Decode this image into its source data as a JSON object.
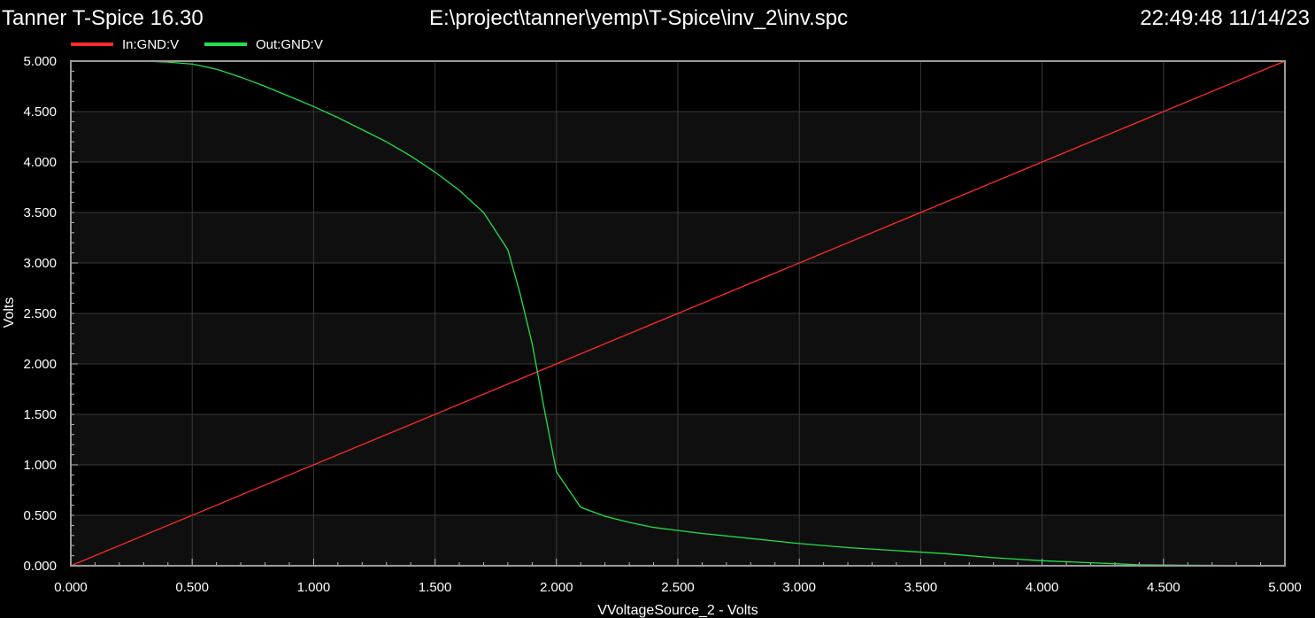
{
  "header": {
    "app_title": "Tanner T-Spice 16.30",
    "file_path": "E:\\project\\tanner\\yemp\\T-Spice\\inv_2\\inv.spc",
    "timestamp": "22:49:48 11/14/23"
  },
  "chart_data": {
    "type": "line",
    "title": "",
    "xlabel": "VVoltageSource_2 - Volts",
    "ylabel": "Volts",
    "xlim": [
      0,
      5
    ],
    "ylim": [
      0,
      5
    ],
    "x_ticks": [
      "0.000",
      "0.500",
      "1.000",
      "1.500",
      "2.000",
      "2.500",
      "3.000",
      "3.500",
      "4.000",
      "4.500",
      "5.000"
    ],
    "y_ticks": [
      "0.000",
      "0.500",
      "1.000",
      "1.500",
      "2.000",
      "2.500",
      "3.000",
      "3.500",
      "4.000",
      "4.500",
      "5.000"
    ],
    "grid": true,
    "legend_position": "top-left",
    "series": [
      {
        "name": "In:GND:V",
        "color": "#ff2a2a",
        "x": [
          0,
          5
        ],
        "y": [
          0,
          5
        ]
      },
      {
        "name": "Out:GND:V",
        "color": "#22e04c",
        "x": [
          0,
          0.3,
          0.4,
          0.5,
          0.6,
          0.7,
          0.8,
          0.9,
          1.0,
          1.1,
          1.2,
          1.3,
          1.4,
          1.5,
          1.6,
          1.7,
          1.8,
          1.85,
          1.9,
          1.95,
          2.0,
          2.1,
          2.2,
          2.3,
          2.4,
          2.5,
          2.6,
          2.8,
          3.0,
          3.2,
          3.4,
          3.6,
          3.8,
          4.0,
          4.2,
          4.4,
          4.6,
          5.0
        ],
        "y": [
          5.0,
          5.0,
          4.99,
          4.97,
          4.92,
          4.84,
          4.75,
          4.65,
          4.55,
          4.44,
          4.32,
          4.2,
          4.06,
          3.9,
          3.72,
          3.5,
          3.13,
          2.7,
          2.2,
          1.55,
          0.93,
          0.58,
          0.49,
          0.43,
          0.38,
          0.35,
          0.32,
          0.27,
          0.22,
          0.18,
          0.15,
          0.12,
          0.08,
          0.05,
          0.03,
          0.01,
          0.005,
          0.0
        ]
      }
    ]
  }
}
